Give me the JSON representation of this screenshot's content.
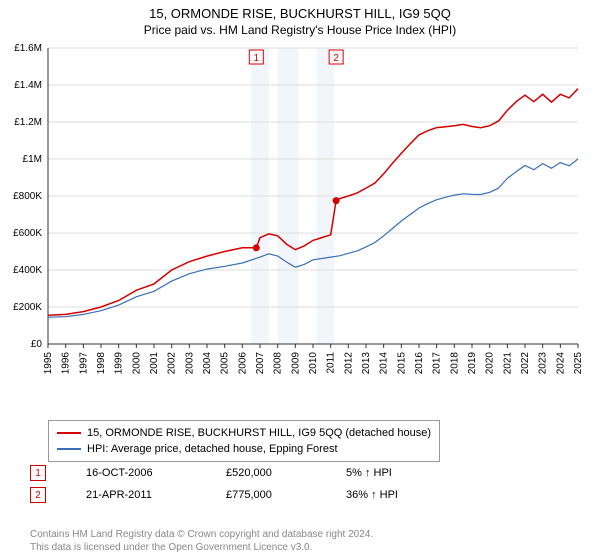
{
  "title": "15, ORMONDE RISE, BUCKHURST HILL, IG9 5QQ",
  "subtitle": "Price paid vs. HM Land Registry's House Price Index (HPI)",
  "chart": {
    "type": "line",
    "background_color": "#ffffff",
    "shade_color": "#f2f6fb",
    "grid_color": "#dddddd",
    "axis_color": "#333333",
    "tick_fontsize": 10,
    "ylabel_prefix": "£",
    "ylim": [
      0,
      1600000
    ],
    "ytick_step": 200000,
    "yticks_labels": [
      "£0",
      "£200K",
      "£400K",
      "£600K",
      "£800K",
      "£1M",
      "£1.2M",
      "£1.4M",
      "£1.6M"
    ],
    "xlim": [
      1995,
      2025
    ],
    "xticks": [
      1995,
      1996,
      1997,
      1998,
      1999,
      2000,
      2001,
      2002,
      2003,
      2004,
      2005,
      2006,
      2007,
      2008,
      2009,
      2010,
      2011,
      2012,
      2013,
      2014,
      2015,
      2016,
      2017,
      2018,
      2019,
      2020,
      2021,
      2022,
      2023,
      2024,
      2025
    ],
    "shade_ranges": [
      [
        2006.5,
        2007.5
      ],
      [
        2008.0,
        2009.2
      ],
      [
        2010.2,
        2011.2
      ]
    ],
    "series": [
      {
        "name": "price_paid",
        "label": "15, ORMONDE RISE, BUCKHURST HILL, IG9 5QQ (detached house)",
        "color": "#d40000",
        "line_width": 1.5,
        "data": [
          [
            1995,
            155000
          ],
          [
            1996,
            160000
          ],
          [
            1997,
            175000
          ],
          [
            1998,
            200000
          ],
          [
            1999,
            235000
          ],
          [
            2000,
            290000
          ],
          [
            2001,
            325000
          ],
          [
            2002,
            400000
          ],
          [
            2003,
            445000
          ],
          [
            2004,
            475000
          ],
          [
            2005,
            500000
          ],
          [
            2006,
            520000
          ],
          [
            2006.79,
            520000
          ],
          [
            2007,
            574500
          ],
          [
            2007.5,
            595000
          ],
          [
            2008,
            585000
          ],
          [
            2008.5,
            540000
          ],
          [
            2009,
            510000
          ],
          [
            2009.5,
            530000
          ],
          [
            2010,
            560000
          ],
          [
            2010.5,
            575000
          ],
          [
            2011,
            590000
          ],
          [
            2011.31,
            775000
          ],
          [
            2011.5,
            785500
          ],
          [
            2012,
            800000
          ],
          [
            2012.5,
            817000
          ],
          [
            2013,
            842500
          ],
          [
            2013.5,
            870000
          ],
          [
            2014,
            920000
          ],
          [
            2014.5,
            976500
          ],
          [
            2015,
            1030000
          ],
          [
            2015.5,
            1082000
          ],
          [
            2016,
            1130000
          ],
          [
            2016.5,
            1153000
          ],
          [
            2017,
            1170000
          ],
          [
            2017.5,
            1174500
          ],
          [
            2018,
            1180000
          ],
          [
            2018.5,
            1187000
          ],
          [
            2019,
            1175500
          ],
          [
            2019.5,
            1169000
          ],
          [
            2020,
            1180000
          ],
          [
            2020.5,
            1205000
          ],
          [
            2021,
            1262500
          ],
          [
            2021.5,
            1310000
          ],
          [
            2022,
            1345000
          ],
          [
            2022.5,
            1310000
          ],
          [
            2023,
            1350000
          ],
          [
            2023.5,
            1307000
          ],
          [
            2024,
            1350000
          ],
          [
            2024.5,
            1330500
          ],
          [
            2025,
            1380000
          ]
        ]
      },
      {
        "name": "hpi",
        "label": "HPI: Average price, detached house, Epping Forest",
        "color": "#3a6fb7",
        "line_width": 1.2,
        "data": [
          [
            1995,
            145000
          ],
          [
            1996,
            147500
          ],
          [
            1997,
            160000
          ],
          [
            1998,
            180000
          ],
          [
            1999,
            210000
          ],
          [
            2000,
            255000
          ],
          [
            2001,
            285000
          ],
          [
            2002,
            340000
          ],
          [
            2003,
            380000
          ],
          [
            2004,
            405000
          ],
          [
            2005,
            420000
          ],
          [
            2006,
            438000
          ],
          [
            2007,
            470000
          ],
          [
            2007.5,
            487500
          ],
          [
            2008,
            475000
          ],
          [
            2008.5,
            443500
          ],
          [
            2009,
            415000
          ],
          [
            2009.5,
            430000
          ],
          [
            2010,
            455000
          ],
          [
            2010.5,
            462000
          ],
          [
            2011,
            470000
          ],
          [
            2011.5,
            477000
          ],
          [
            2012,
            490000
          ],
          [
            2012.5,
            503500
          ],
          [
            2013,
            525000
          ],
          [
            2013.5,
            548500
          ],
          [
            2014,
            585000
          ],
          [
            2014.5,
            624500
          ],
          [
            2015,
            665000
          ],
          [
            2015.5,
            700000
          ],
          [
            2016,
            735000
          ],
          [
            2016.5,
            759000
          ],
          [
            2017,
            780000
          ],
          [
            2017.5,
            793000
          ],
          [
            2018,
            805000
          ],
          [
            2018.5,
            812000
          ],
          [
            2019,
            808500
          ],
          [
            2019.5,
            808000
          ],
          [
            2020,
            820000
          ],
          [
            2020.5,
            842500
          ],
          [
            2021,
            895000
          ],
          [
            2021.5,
            932000
          ],
          [
            2022,
            965000
          ],
          [
            2022.5,
            942000
          ],
          [
            2023,
            975000
          ],
          [
            2023.5,
            950000
          ],
          [
            2024,
            981000
          ],
          [
            2024.5,
            963500
          ],
          [
            2025,
            1000000
          ]
        ]
      }
    ],
    "sale_markers": [
      {
        "n": "1",
        "x": 2006.79,
        "y": 520000,
        "color": "#d40000"
      },
      {
        "n": "2",
        "x": 2011.31,
        "y": 775000,
        "color": "#d40000"
      }
    ]
  },
  "legend": {
    "items": [
      {
        "color": "#d40000",
        "label": "15, ORMONDE RISE, BUCKHURST HILL, IG9 5QQ (detached house)"
      },
      {
        "color": "#3a6fb7",
        "label": "HPI: Average price, detached house, Epping Forest"
      }
    ]
  },
  "sales": [
    {
      "n": "1",
      "color": "#d40000",
      "date": "16-OCT-2006",
      "price": "£520,000",
      "diff": "5% ↑ HPI"
    },
    {
      "n": "2",
      "color": "#d40000",
      "date": "21-APR-2011",
      "price": "£775,000",
      "diff": "36% ↑ HPI"
    }
  ],
  "footer": {
    "line1": "Contains HM Land Registry data © Crown copyright and database right 2024.",
    "line2": "This data is licensed under the Open Government Licence v3.0."
  }
}
